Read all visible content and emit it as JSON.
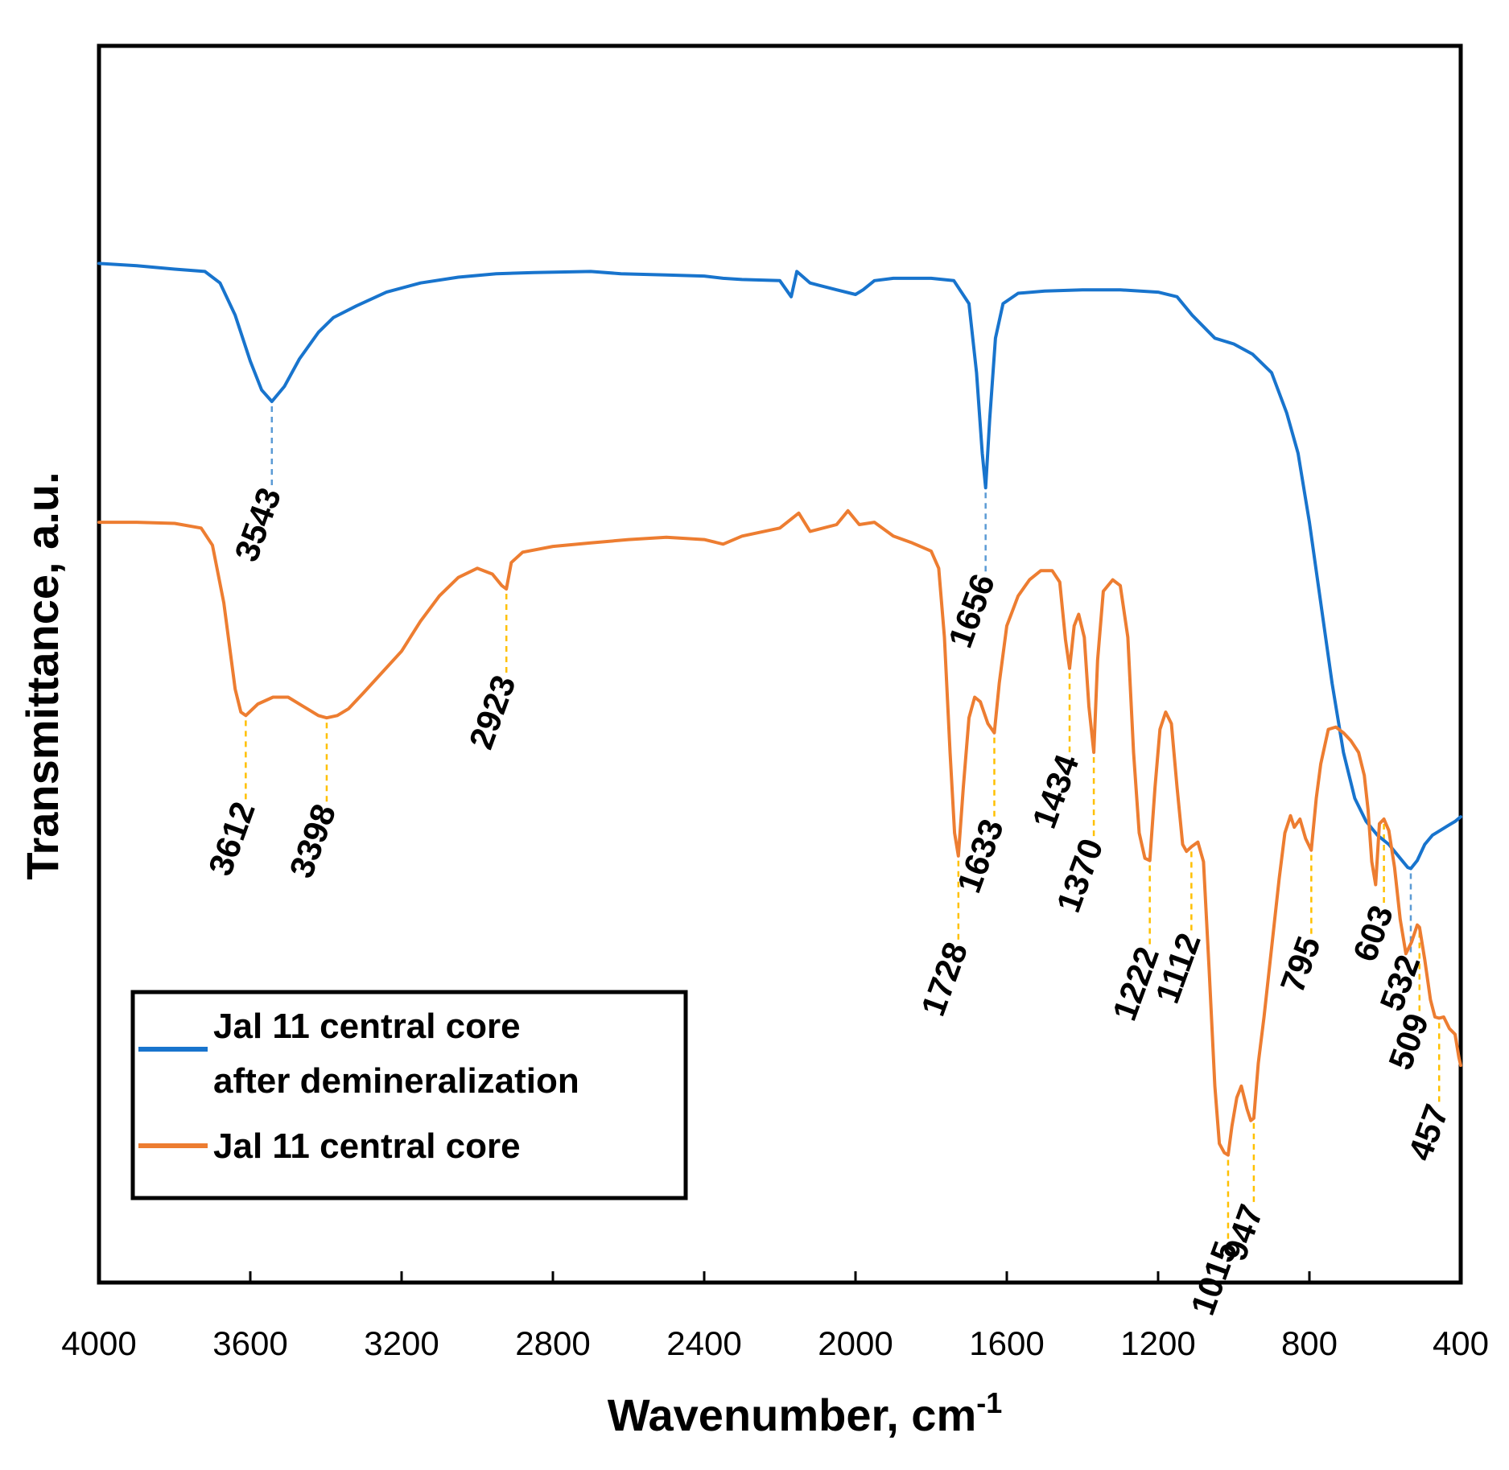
{
  "chart_data": {
    "type": "line",
    "title": "",
    "xlabel": "Wavenumber, cm",
    "xlabel_superscript": "-1",
    "ylabel": "Transmittance, a.u.",
    "xlim": [
      4000,
      400
    ],
    "ylim": [
      0,
      1
    ],
    "x_reversed": true,
    "grid": false,
    "legend_position": "lower-left",
    "x_ticks": [
      "4000",
      "3600",
      "3200",
      "2800",
      "2400",
      "2000",
      "1600",
      "1200",
      "800",
      "400"
    ],
    "colors": {
      "after": "#1874CD",
      "core": "#ED7D31",
      "after_guide": "#5B9BD5",
      "core_guide": "#FFC000"
    },
    "series": [
      {
        "name": "Jal 11 central core after demineralization",
        "key": "after",
        "points": [
          [
            4000,
            0.855
          ],
          [
            3900,
            0.853
          ],
          [
            3800,
            0.85
          ],
          [
            3720,
            0.848
          ],
          [
            3680,
            0.838
          ],
          [
            3640,
            0.81
          ],
          [
            3600,
            0.77
          ],
          [
            3570,
            0.745
          ],
          [
            3543,
            0.735
          ],
          [
            3510,
            0.748
          ],
          [
            3470,
            0.772
          ],
          [
            3420,
            0.795
          ],
          [
            3380,
            0.808
          ],
          [
            3320,
            0.818
          ],
          [
            3240,
            0.83
          ],
          [
            3150,
            0.838
          ],
          [
            3050,
            0.843
          ],
          [
            2950,
            0.846
          ],
          [
            2850,
            0.847
          ],
          [
            2700,
            0.848
          ],
          [
            2620,
            0.846
          ],
          [
            2500,
            0.845
          ],
          [
            2400,
            0.844
          ],
          [
            2350,
            0.842
          ],
          [
            2300,
            0.841
          ],
          [
            2200,
            0.84
          ],
          [
            2170,
            0.826
          ],
          [
            2155,
            0.848
          ],
          [
            2120,
            0.838
          ],
          [
            2050,
            0.832
          ],
          [
            2000,
            0.828
          ],
          [
            1980,
            0.832
          ],
          [
            1950,
            0.84
          ],
          [
            1900,
            0.842
          ],
          [
            1800,
            0.842
          ],
          [
            1740,
            0.84
          ],
          [
            1700,
            0.82
          ],
          [
            1680,
            0.76
          ],
          [
            1665,
            0.69
          ],
          [
            1656,
            0.66
          ],
          [
            1645,
            0.72
          ],
          [
            1630,
            0.79
          ],
          [
            1610,
            0.82
          ],
          [
            1570,
            0.829
          ],
          [
            1500,
            0.831
          ],
          [
            1400,
            0.832
          ],
          [
            1300,
            0.832
          ],
          [
            1200,
            0.83
          ],
          [
            1150,
            0.826
          ],
          [
            1110,
            0.81
          ],
          [
            1050,
            0.79
          ],
          [
            1000,
            0.785
          ],
          [
            950,
            0.776
          ],
          [
            900,
            0.76
          ],
          [
            860,
            0.725
          ],
          [
            830,
            0.69
          ],
          [
            800,
            0.63
          ],
          [
            770,
            0.56
          ],
          [
            740,
            0.49
          ],
          [
            710,
            0.43
          ],
          [
            680,
            0.39
          ],
          [
            650,
            0.37
          ],
          [
            620,
            0.358
          ],
          [
            590,
            0.35
          ],
          [
            560,
            0.338
          ],
          [
            540,
            0.33
          ],
          [
            532,
            0.329
          ],
          [
            515,
            0.336
          ],
          [
            495,
            0.35
          ],
          [
            475,
            0.358
          ],
          [
            455,
            0.362
          ],
          [
            435,
            0.366
          ],
          [
            415,
            0.37
          ],
          [
            400,
            0.374
          ]
        ]
      },
      {
        "name": "Jal 11 central core",
        "key": "core",
        "points": [
          [
            4000,
            0.63
          ],
          [
            3900,
            0.63
          ],
          [
            3800,
            0.629
          ],
          [
            3730,
            0.625
          ],
          [
            3700,
            0.61
          ],
          [
            3670,
            0.56
          ],
          [
            3640,
            0.485
          ],
          [
            3625,
            0.465
          ],
          [
            3612,
            0.462
          ],
          [
            3580,
            0.472
          ],
          [
            3540,
            0.478
          ],
          [
            3500,
            0.478
          ],
          [
            3460,
            0.47
          ],
          [
            3420,
            0.462
          ],
          [
            3398,
            0.46
          ],
          [
            3370,
            0.462
          ],
          [
            3340,
            0.468
          ],
          [
            3300,
            0.482
          ],
          [
            3250,
            0.5
          ],
          [
            3200,
            0.518
          ],
          [
            3150,
            0.544
          ],
          [
            3100,
            0.566
          ],
          [
            3050,
            0.582
          ],
          [
            3000,
            0.59
          ],
          [
            2960,
            0.585
          ],
          [
            2935,
            0.575
          ],
          [
            2923,
            0.572
          ],
          [
            2910,
            0.595
          ],
          [
            2880,
            0.604
          ],
          [
            2800,
            0.609
          ],
          [
            2700,
            0.612
          ],
          [
            2600,
            0.615
          ],
          [
            2500,
            0.617
          ],
          [
            2400,
            0.615
          ],
          [
            2350,
            0.611
          ],
          [
            2300,
            0.618
          ],
          [
            2200,
            0.625
          ],
          [
            2150,
            0.638
          ],
          [
            2120,
            0.622
          ],
          [
            2050,
            0.628
          ],
          [
            2020,
            0.64
          ],
          [
            1990,
            0.628
          ],
          [
            1950,
            0.63
          ],
          [
            1900,
            0.618
          ],
          [
            1850,
            0.612
          ],
          [
            1800,
            0.605
          ],
          [
            1780,
            0.59
          ],
          [
            1765,
            0.53
          ],
          [
            1750,
            0.43
          ],
          [
            1738,
            0.36
          ],
          [
            1728,
            0.34
          ],
          [
            1715,
            0.4
          ],
          [
            1700,
            0.46
          ],
          [
            1685,
            0.478
          ],
          [
            1670,
            0.474
          ],
          [
            1650,
            0.455
          ],
          [
            1633,
            0.447
          ],
          [
            1620,
            0.49
          ],
          [
            1600,
            0.54
          ],
          [
            1570,
            0.566
          ],
          [
            1540,
            0.58
          ],
          [
            1510,
            0.588
          ],
          [
            1480,
            0.588
          ],
          [
            1460,
            0.578
          ],
          [
            1445,
            0.528
          ],
          [
            1434,
            0.503
          ],
          [
            1422,
            0.54
          ],
          [
            1410,
            0.55
          ],
          [
            1395,
            0.53
          ],
          [
            1383,
            0.47
          ],
          [
            1370,
            0.43
          ],
          [
            1360,
            0.51
          ],
          [
            1345,
            0.57
          ],
          [
            1320,
            0.58
          ],
          [
            1300,
            0.575
          ],
          [
            1280,
            0.53
          ],
          [
            1265,
            0.43
          ],
          [
            1250,
            0.36
          ],
          [
            1235,
            0.338
          ],
          [
            1222,
            0.336
          ],
          [
            1208,
            0.4
          ],
          [
            1195,
            0.45
          ],
          [
            1180,
            0.465
          ],
          [
            1165,
            0.455
          ],
          [
            1150,
            0.4
          ],
          [
            1135,
            0.35
          ],
          [
            1125,
            0.344
          ],
          [
            1112,
            0.348
          ],
          [
            1095,
            0.352
          ],
          [
            1080,
            0.335
          ],
          [
            1065,
            0.24
          ],
          [
            1050,
            0.14
          ],
          [
            1038,
            0.09
          ],
          [
            1025,
            0.082
          ],
          [
            1015,
            0.08
          ],
          [
            1005,
            0.105
          ],
          [
            992,
            0.13
          ],
          [
            980,
            0.14
          ],
          [
            965,
            0.12
          ],
          [
            955,
            0.11
          ],
          [
            947,
            0.112
          ],
          [
            935,
            0.16
          ],
          [
            920,
            0.2
          ],
          [
            900,
            0.26
          ],
          [
            880,
            0.32
          ],
          [
            865,
            0.36
          ],
          [
            850,
            0.375
          ],
          [
            840,
            0.365
          ],
          [
            825,
            0.372
          ],
          [
            810,
            0.355
          ],
          [
            795,
            0.345
          ],
          [
            782,
            0.39
          ],
          [
            770,
            0.42
          ],
          [
            750,
            0.45
          ],
          [
            730,
            0.452
          ],
          [
            710,
            0.447
          ],
          [
            690,
            0.44
          ],
          [
            670,
            0.43
          ],
          [
            655,
            0.41
          ],
          [
            645,
            0.38
          ],
          [
            635,
            0.335
          ],
          [
            625,
            0.315
          ],
          [
            615,
            0.368
          ],
          [
            603,
            0.372
          ],
          [
            590,
            0.362
          ],
          [
            575,
            0.33
          ],
          [
            560,
            0.285
          ],
          [
            545,
            0.255
          ],
          [
            530,
            0.265
          ],
          [
            515,
            0.28
          ],
          [
            509,
            0.278
          ],
          [
            495,
            0.25
          ],
          [
            480,
            0.215
          ],
          [
            468,
            0.2
          ],
          [
            457,
            0.199
          ],
          [
            445,
            0.2
          ],
          [
            430,
            0.19
          ],
          [
            415,
            0.185
          ],
          [
            405,
            0.165
          ],
          [
            400,
            0.158
          ]
        ]
      }
    ],
    "annotations": [
      {
        "label": "3543",
        "series": "after",
        "x": 3543
      },
      {
        "label": "1656",
        "series": "after",
        "x": 1656
      },
      {
        "label": "532",
        "series": "after",
        "x": 532
      },
      {
        "label": "3612",
        "series": "core",
        "x": 3612
      },
      {
        "label": "3398",
        "series": "core",
        "x": 3398
      },
      {
        "label": "2923",
        "series": "core",
        "x": 2923
      },
      {
        "label": "1728",
        "series": "core",
        "x": 1728
      },
      {
        "label": "1633",
        "series": "core",
        "x": 1633
      },
      {
        "label": "1434",
        "series": "core",
        "x": 1434
      },
      {
        "label": "1370",
        "series": "core",
        "x": 1370
      },
      {
        "label": "1222",
        "series": "core",
        "x": 1222
      },
      {
        "label": "1112",
        "series": "core",
        "x": 1112
      },
      {
        "label": "1015",
        "series": "core",
        "x": 1015
      },
      {
        "label": "947",
        "series": "core",
        "x": 947
      },
      {
        "label": "795",
        "series": "core",
        "x": 795
      },
      {
        "label": "603",
        "series": "core",
        "x": 603
      },
      {
        "label": "509",
        "series": "core",
        "x": 509
      },
      {
        "label": "457",
        "series": "core",
        "x": 457
      }
    ],
    "legend": [
      {
        "series": "after",
        "lines": [
          "Jal 11 central core",
          "after demineralization"
        ]
      },
      {
        "series": "core",
        "lines": [
          "Jal 11 central core"
        ]
      }
    ]
  }
}
